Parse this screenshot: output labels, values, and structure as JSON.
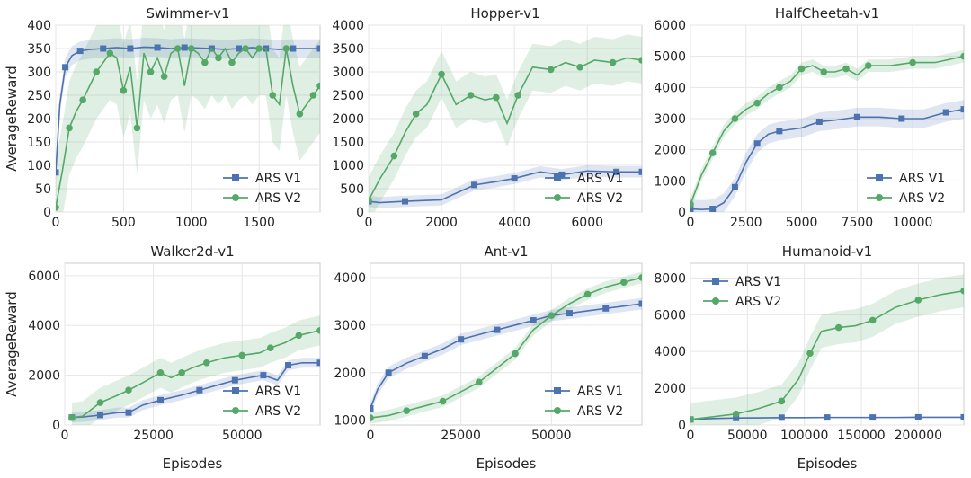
{
  "figure": {
    "ylabel": "AverageReward",
    "xlabel": "Episodes"
  },
  "colors": {
    "v1": "#4c72b0",
    "v2": "#55a868",
    "grid": "#e6e6e6",
    "frame": "#cccccc"
  },
  "chart_data": [
    {
      "type": "line",
      "title": "Swimmer-v1",
      "ylabel": "AverageReward",
      "xlabel": "",
      "xlim": [
        0,
        1950
      ],
      "ylim": [
        0,
        400
      ],
      "xticks": [
        0,
        500,
        1000,
        1500
      ],
      "yticks": [
        0,
        50,
        100,
        150,
        200,
        250,
        300,
        350,
        400
      ],
      "legend": "lower-right",
      "grid": true,
      "series": [
        {
          "name": "ARS V1",
          "x": [
            0,
            30,
            70,
            120,
            180,
            250,
            350,
            450,
            550,
            650,
            750,
            850,
            950,
            1050,
            1150,
            1250,
            1350,
            1450,
            1550,
            1650,
            1750,
            1850,
            1950
          ],
          "y": [
            85,
            230,
            310,
            335,
            345,
            348,
            350,
            352,
            350,
            353,
            352,
            350,
            352,
            351,
            350,
            348,
            350,
            352,
            350,
            348,
            350,
            350,
            350
          ],
          "band": 20
        },
        {
          "name": "ARS V2",
          "x": [
            0,
            50,
            100,
            150,
            200,
            250,
            300,
            350,
            400,
            450,
            500,
            550,
            600,
            650,
            700,
            750,
            800,
            850,
            900,
            950,
            1000,
            1050,
            1100,
            1150,
            1200,
            1250,
            1300,
            1350,
            1400,
            1450,
            1500,
            1550,
            1600,
            1650,
            1700,
            1750,
            1800,
            1850,
            1900,
            1950
          ],
          "y": [
            10,
            90,
            180,
            215,
            240,
            270,
            300,
            320,
            340,
            330,
            260,
            310,
            180,
            340,
            300,
            330,
            290,
            340,
            350,
            270,
            350,
            340,
            320,
            350,
            330,
            350,
            320,
            340,
            350,
            330,
            350,
            350,
            250,
            230,
            350,
            270,
            210,
            230,
            250,
            270
          ],
          "band": 100
        }
      ]
    },
    {
      "type": "line",
      "title": "Hopper-v1",
      "ylabel": "",
      "xlabel": "",
      "xlim": [
        0,
        7500
      ],
      "ylim": [
        0,
        4000
      ],
      "xticks": [
        0,
        2000,
        4000,
        6000
      ],
      "yticks": [
        0,
        500,
        1000,
        1500,
        2000,
        2500,
        3000,
        3500,
        4000
      ],
      "legend": "lower-right",
      "grid": true,
      "series": [
        {
          "name": "ARS V1",
          "x": [
            0,
            300,
            1000,
            2000,
            2900,
            3500,
            4000,
            4700,
            5300,
            6000,
            6800,
            7500
          ],
          "y": [
            230,
            200,
            230,
            260,
            580,
            650,
            720,
            860,
            800,
            880,
            860,
            860
          ],
          "band": 120
        },
        {
          "name": "ARS V2",
          "x": [
            0,
            300,
            700,
            1000,
            1300,
            1600,
            2000,
            2400,
            2800,
            3200,
            3500,
            3800,
            4100,
            4500,
            5000,
            5400,
            5800,
            6200,
            6700,
            7100,
            7500
          ],
          "y": [
            250,
            700,
            1200,
            1700,
            2100,
            2300,
            2950,
            2300,
            2500,
            2400,
            2450,
            1900,
            2500,
            3100,
            3050,
            3200,
            3100,
            3250,
            3200,
            3300,
            3250
          ],
          "band": 500
        }
      ]
    },
    {
      "type": "line",
      "title": "HalfCheetah-v1",
      "ylabel": "",
      "xlabel": "",
      "xlim": [
        0,
        12300
      ],
      "ylim": [
        0,
        6000
      ],
      "xticks": [
        0,
        2500,
        5000,
        7500,
        10000
      ],
      "yticks": [
        0,
        1000,
        2000,
        3000,
        4000,
        5000,
        6000
      ],
      "legend": "lower-right",
      "grid": true,
      "series": [
        {
          "name": "ARS V1",
          "x": [
            0,
            500,
            1000,
            1500,
            2000,
            2500,
            3000,
            3500,
            4000,
            5000,
            5800,
            6500,
            7500,
            8500,
            9500,
            10500,
            11500,
            12300
          ],
          "y": [
            100,
            80,
            100,
            300,
            800,
            1600,
            2200,
            2500,
            2600,
            2700,
            2900,
            2950,
            3050,
            3050,
            3000,
            3000,
            3200,
            3300
          ],
          "band": 300
        },
        {
          "name": "ARS V2",
          "x": [
            0,
            500,
            1000,
            1500,
            2000,
            2500,
            3000,
            3500,
            4000,
            4500,
            5000,
            5500,
            6000,
            6500,
            7000,
            7500,
            8000,
            9000,
            10000,
            11000,
            12300
          ],
          "y": [
            250,
            1200,
            1900,
            2600,
            3000,
            3300,
            3500,
            3800,
            4000,
            4200,
            4600,
            4700,
            4500,
            4500,
            4600,
            4400,
            4700,
            4700,
            4800,
            4800,
            5000
          ],
          "band": 200
        }
      ]
    },
    {
      "type": "line",
      "title": "Walker2d-v1",
      "ylabel": "AverageReward",
      "xlabel": "Episodes",
      "xlim": [
        0,
        72000
      ],
      "ylim": [
        0,
        6500
      ],
      "xticks": [
        0,
        25000,
        50000
      ],
      "yticks": [
        0,
        2000,
        4000,
        6000
      ],
      "legend": "lower-right",
      "grid": true,
      "series": [
        {
          "name": "ARS V1",
          "x": [
            2000,
            5000,
            10000,
            15000,
            18000,
            22000,
            27000,
            33000,
            38000,
            43000,
            48000,
            52000,
            56000,
            60000,
            63000,
            67000,
            72000
          ],
          "y": [
            300,
            320,
            400,
            500,
            500,
            800,
            1000,
            1200,
            1400,
            1600,
            1800,
            1900,
            2000,
            1800,
            2400,
            2500,
            2500
          ],
          "band": 200
        },
        {
          "name": "ARS V2",
          "x": [
            2000,
            5000,
            10000,
            15000,
            18000,
            22000,
            27000,
            30000,
            33000,
            36000,
            40000,
            45000,
            50000,
            55000,
            58000,
            62000,
            66000,
            72000
          ],
          "y": [
            300,
            350,
            900,
            1200,
            1400,
            1700,
            2100,
            1900,
            2100,
            2300,
            2500,
            2700,
            2800,
            2900,
            3100,
            3300,
            3600,
            3800
          ],
          "band": 600
        }
      ]
    },
    {
      "type": "line",
      "title": "Ant-v1",
      "ylabel": "",
      "xlabel": "Episodes",
      "xlim": [
        0,
        75000
      ],
      "ylim": [
        900,
        4300
      ],
      "xticks": [
        0,
        25000,
        50000
      ],
      "yticks": [
        1000,
        2000,
        3000,
        4000
      ],
      "legend": "lower-right",
      "grid": true,
      "series": [
        {
          "name": "ARS V1",
          "x": [
            0,
            2000,
            5000,
            10000,
            15000,
            20000,
            25000,
            30000,
            35000,
            40000,
            45000,
            50000,
            55000,
            60000,
            65000,
            70000,
            75000
          ],
          "y": [
            1250,
            1650,
            2000,
            2200,
            2350,
            2500,
            2700,
            2800,
            2900,
            3000,
            3100,
            3200,
            3250,
            3300,
            3350,
            3400,
            3450
          ],
          "band": 120
        },
        {
          "name": "ARS V2",
          "x": [
            0,
            5000,
            10000,
            15000,
            20000,
            25000,
            30000,
            35000,
            40000,
            45000,
            50000,
            55000,
            60000,
            65000,
            70000,
            75000
          ],
          "y": [
            1050,
            1100,
            1200,
            1300,
            1400,
            1600,
            1800,
            2100,
            2400,
            2900,
            3200,
            3450,
            3650,
            3800,
            3900,
            4000
          ],
          "band": 120
        }
      ]
    },
    {
      "type": "line",
      "title": "Humanoid-v1",
      "ylabel": "",
      "xlabel": "Episodes",
      "xlim": [
        0,
        240000
      ],
      "ylim": [
        0,
        8800
      ],
      "xticks": [
        0,
        50000,
        100000,
        150000,
        200000
      ],
      "yticks": [
        0,
        2000,
        4000,
        6000,
        8000
      ],
      "legend": "upper-left",
      "grid": true,
      "series": [
        {
          "name": "ARS V1",
          "x": [
            0,
            20000,
            40000,
            60000,
            80000,
            100000,
            120000,
            140000,
            160000,
            180000,
            200000,
            220000,
            240000
          ],
          "y": [
            300,
            350,
            380,
            390,
            400,
            400,
            410,
            410,
            410,
            410,
            420,
            420,
            420
          ],
          "band": 30
        },
        {
          "name": "ARS V2",
          "x": [
            0,
            20000,
            40000,
            60000,
            80000,
            95000,
            105000,
            115000,
            130000,
            145000,
            160000,
            180000,
            200000,
            220000,
            240000
          ],
          "y": [
            300,
            450,
            600,
            900,
            1300,
            2500,
            3900,
            5100,
            5300,
            5400,
            5700,
            6400,
            6800,
            7100,
            7300
          ],
          "band": 900
        }
      ]
    }
  ]
}
